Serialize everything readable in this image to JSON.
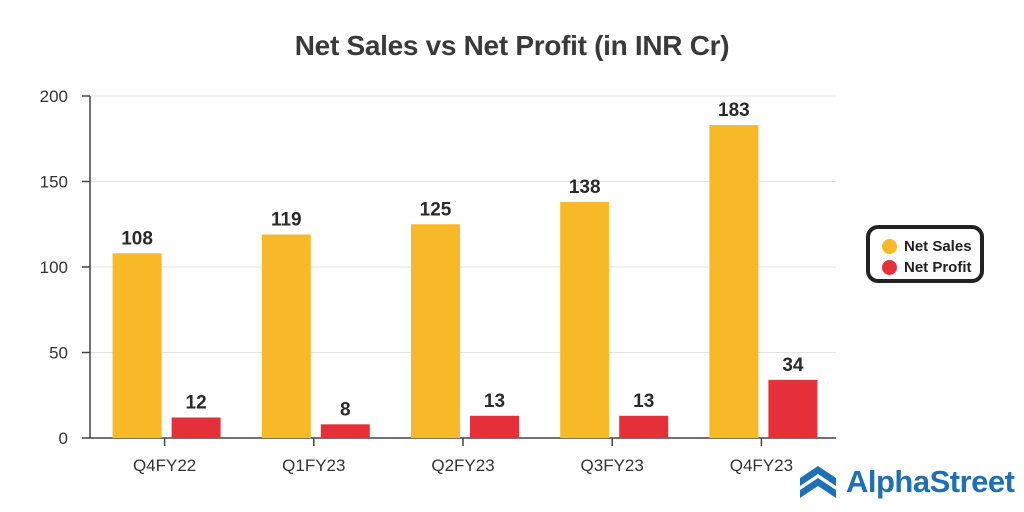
{
  "chart_data": {
    "type": "bar",
    "title": "Net Sales vs Net Profit (in INR Cr)",
    "categories": [
      "Q4FY22",
      "Q1FY23",
      "Q2FY23",
      "Q3FY23",
      "Q4FY23"
    ],
    "series": [
      {
        "name": "Net Sales",
        "values": [
          108,
          119,
          125,
          138,
          183
        ],
        "color": "#f7b927"
      },
      {
        "name": "Net Profit",
        "values": [
          12,
          8,
          13,
          13,
          34
        ],
        "color": "#e5303a"
      }
    ],
    "ylim": [
      0,
      200
    ],
    "yticks": [
      0,
      50,
      100,
      150,
      200
    ],
    "grid": true,
    "legend_position": "right"
  },
  "brand": {
    "name": "AlphaStreet",
    "icon": "alphastreet-logo-icon",
    "color": "#1f6fb5"
  }
}
